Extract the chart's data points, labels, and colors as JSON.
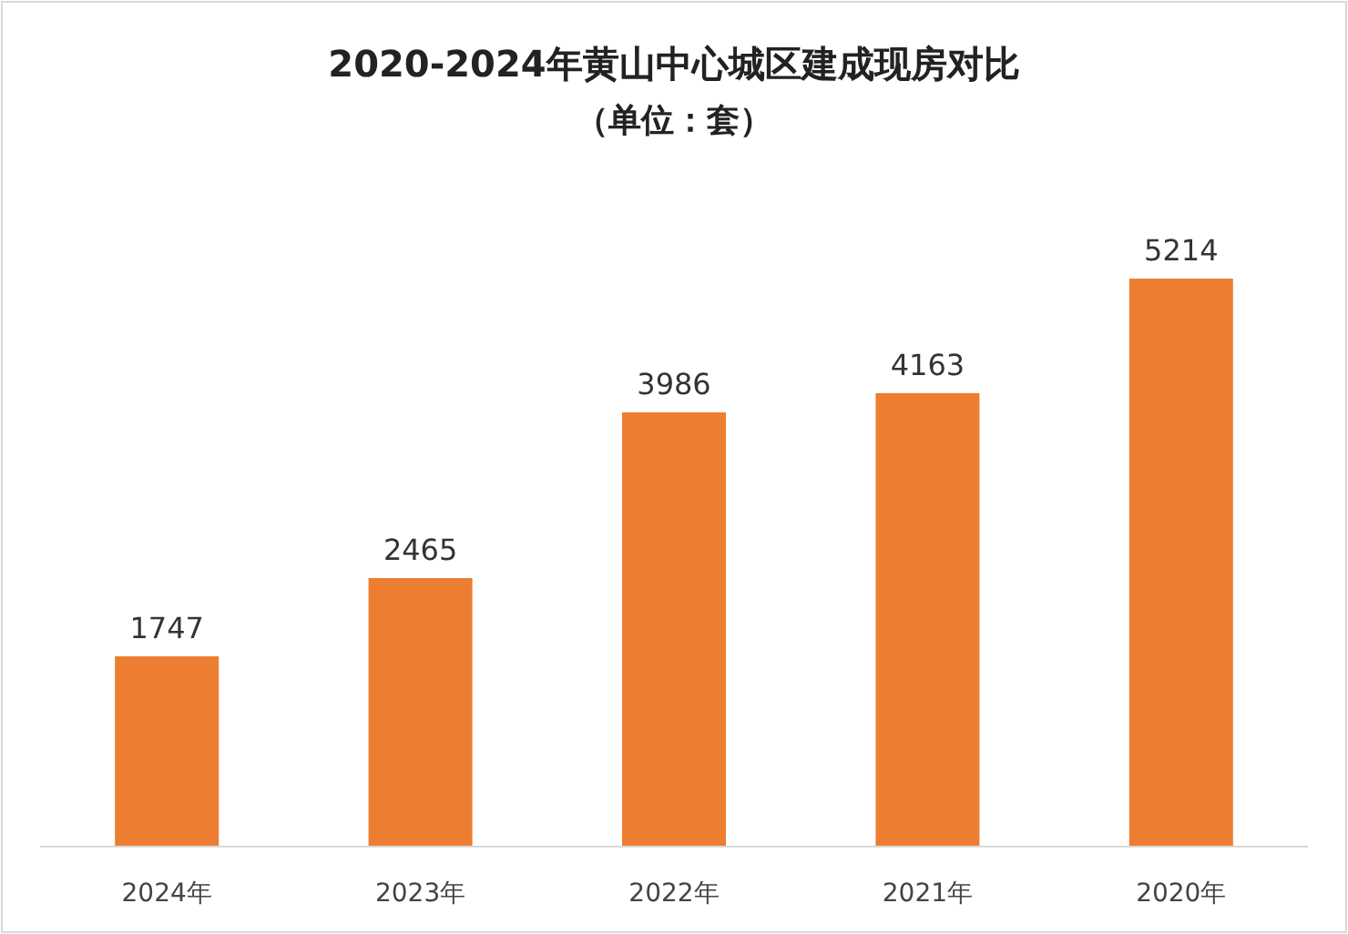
{
  "chart_data": {
    "type": "bar",
    "title": "2020-2024年黄山中心城区建成现房对比",
    "subtitle": "（单位：套）",
    "categories": [
      "2024年",
      "2023年",
      "2022年",
      "2021年",
      "2020年"
    ],
    "values": [
      1747,
      2465,
      3986,
      4163,
      5214
    ],
    "color": "#ed7d31",
    "data_labels": true
  }
}
